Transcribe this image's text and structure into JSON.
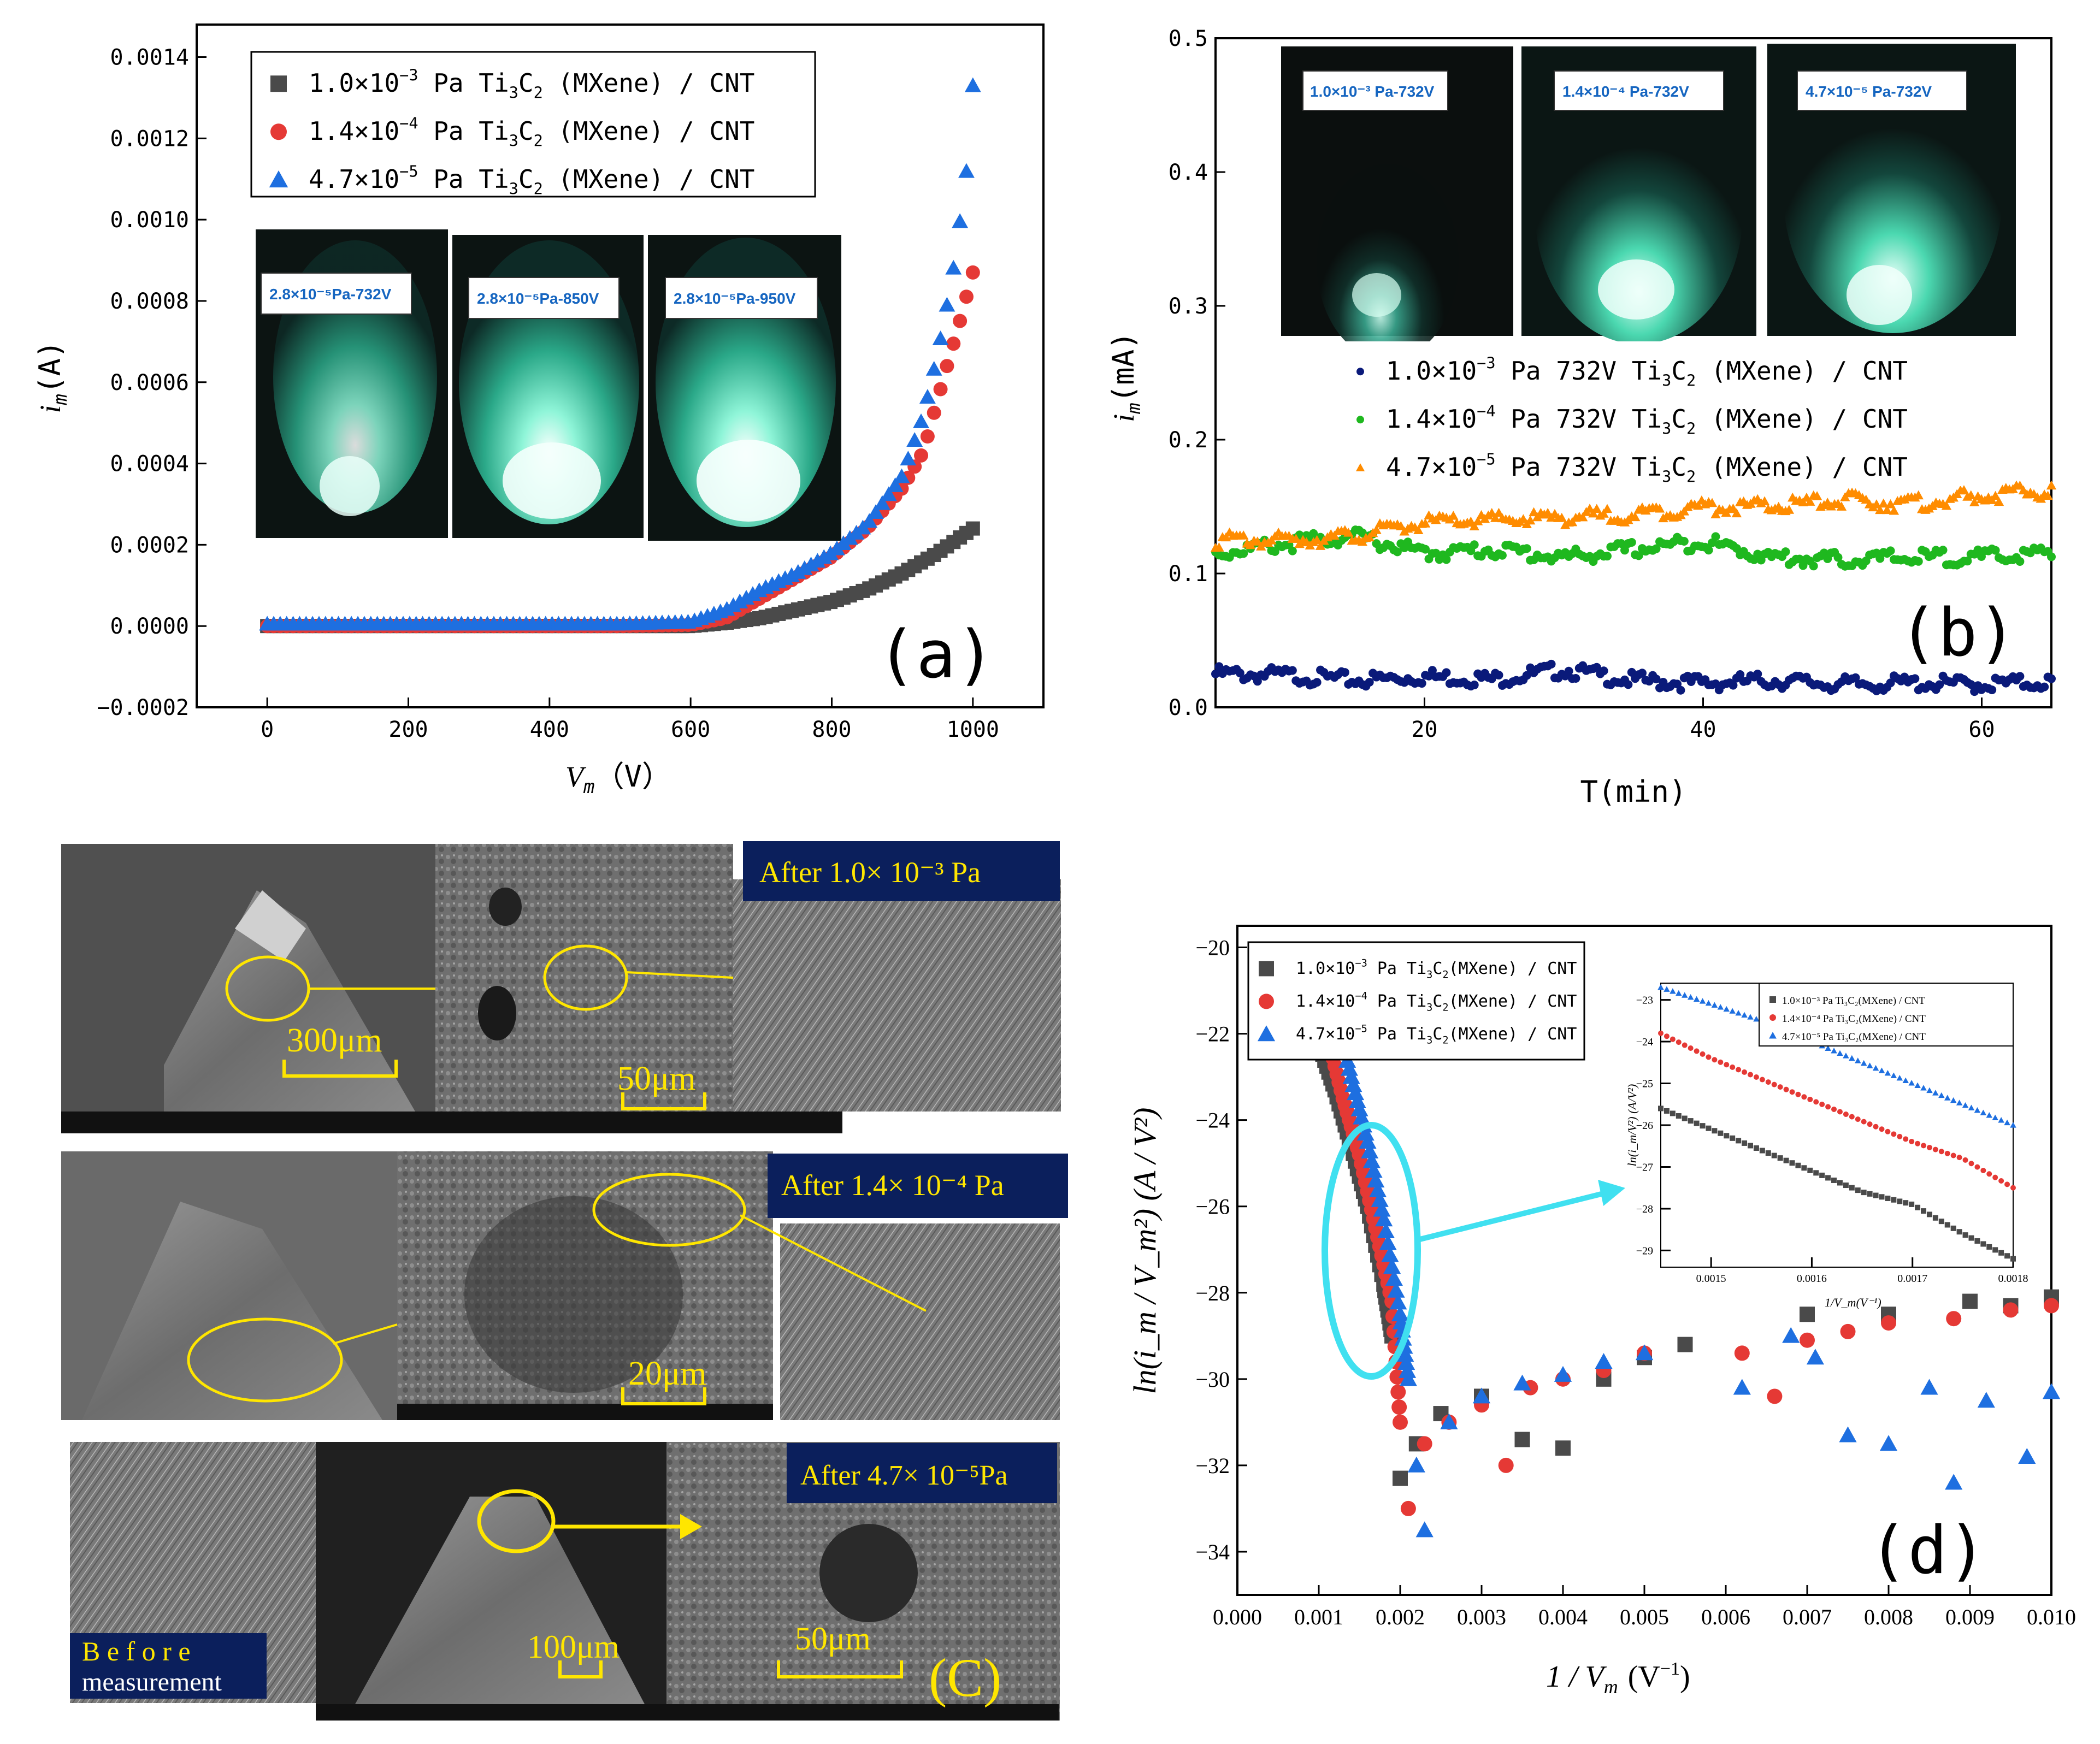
{
  "figure": {
    "colors": {
      "black": "#4a4a4a",
      "red": "#e53935",
      "blue": "#1e6fe0",
      "navy": "#0a1a7a",
      "green": "#1fb81f",
      "orange": "#ff8c00",
      "cyan": "#40e0f0",
      "yellow": "#ffe600",
      "teal": "#3fe0b0",
      "capbg": "#0b1f5c"
    }
  },
  "chart_data": [
    {
      "id": "a",
      "type": "scatter",
      "panel_label": "(a)",
      "xlabel_var": "V",
      "xlabel_sub": "m",
      "xlabel_unit": "（V）",
      "ylabel_var": "i",
      "ylabel_sub": "m",
      "ylabel_unit": "(A)",
      "xlim": [
        -100,
        1100
      ],
      "ylim": [
        -0.0002,
        0.00148
      ],
      "xticks": [
        "0",
        "200",
        "400",
        "600",
        "800",
        "1000"
      ],
      "yticks": [
        "−0.0002",
        "0.0000",
        "0.0002",
        "0.0004",
        "0.0006",
        "0.0008",
        "0.0010",
        "0.0012",
        "0.0014"
      ],
      "legend": [
        {
          "a": "1.0×10",
          "exp": "−3",
          "b": " Pa Ti",
          "s1": "3",
          "c": "C",
          "s2": "2",
          "d": " (MXene) / CNT",
          "marker": "square",
          "color": "#4a4a4a"
        },
        {
          "a": "1.4×10",
          "exp": "−4",
          "b": " Pa Ti",
          "s1": "3",
          "c": "C",
          "s2": "2",
          "d": " (MXene) / CNT",
          "marker": "circle",
          "color": "#e53935"
        },
        {
          "a": "4.7×10",
          "exp": "−5",
          "b": " Pa Ti",
          "s1": "3",
          "c": "C",
          "s2": "2",
          "d": " (MXene) / CNT",
          "marker": "triangle",
          "color": "#1e6fe0"
        }
      ],
      "series": [
        {
          "name": "1.0×10^-3 Pa",
          "x": [
            0,
            100,
            200,
            300,
            400,
            500,
            600,
            650,
            700,
            750,
            800,
            850,
            900,
            950,
            1000
          ],
          "y": [
            0,
            0,
            0,
            0,
            0,
            0,
            0,
            8e-06,
            2e-05,
            4e-05,
            6e-05,
            9e-05,
            0.00013,
            0.00018,
            0.00024
          ]
        },
        {
          "name": "1.4×10^-4 Pa",
          "x": [
            0,
            100,
            200,
            300,
            400,
            500,
            600,
            650,
            700,
            750,
            800,
            850,
            900,
            930,
            960,
            980,
            1000
          ],
          "y": [
            0,
            0,
            0,
            0,
            0,
            0,
            3e-06,
            2e-05,
            7e-05,
            0.00012,
            0.00017,
            0.00024,
            0.00034,
            0.00043,
            0.00062,
            0.00074,
            0.00087
          ]
        },
        {
          "name": "4.7×10^-5 Pa",
          "x": [
            0,
            100,
            200,
            300,
            400,
            500,
            600,
            650,
            700,
            750,
            800,
            850,
            900,
            930,
            950,
            970,
            990,
            1000
          ],
          "y": [
            5e-06,
            5e-06,
            5e-06,
            5e-06,
            5e-06,
            5e-06,
            1e-05,
            4e-05,
            9e-05,
            0.00013,
            0.00018,
            0.00025,
            0.00037,
            0.00052,
            0.00067,
            0.00085,
            0.0011,
            0.00133
          ]
        }
      ],
      "insets": [
        "2.8×10⁻⁵Pa-732V",
        "2.8×10⁻⁵Pa-850V",
        "2.8×10⁻⁵Pa-950V"
      ]
    },
    {
      "id": "b",
      "type": "scatter",
      "panel_label": "(b)",
      "xlabel": "T(min)",
      "ylabel_var": "i",
      "ylabel_sub": "m",
      "ylabel_unit": "(mA)",
      "xlim": [
        5,
        65
      ],
      "ylim": [
        0,
        0.5
      ],
      "xticks": [
        "20",
        "40",
        "60"
      ],
      "yticks": [
        "0.0",
        "0.1",
        "0.2",
        "0.3",
        "0.4",
        "0.5"
      ],
      "legend": [
        {
          "a": "1.0×10",
          "exp": "−3",
          "b": " Pa 732V Ti",
          "s1": "3",
          "c": "C",
          "s2": "2",
          "d": " (MXene) / CNT",
          "marker": "dot",
          "color": "#0a1a7a"
        },
        {
          "a": "1.4×10",
          "exp": "−4",
          "b": " Pa 732V Ti",
          "s1": "3",
          "c": "C",
          "s2": "2",
          "d": " (MXene) / CNT",
          "marker": "dot",
          "color": "#1fb81f"
        },
        {
          "a": "4.7×10",
          "exp": "−5",
          "b": " Pa 732V Ti",
          "s1": "3",
          "c": "C",
          "s2": "2",
          "d": " (MXene) / CNT",
          "marker": "tri",
          "color": "#ff8c00"
        }
      ],
      "series": [
        {
          "name": "1.0×10^-3 Pa 732V",
          "x": [
            5,
            10,
            15,
            20,
            25,
            30,
            35,
            40,
            45,
            50,
            55,
            60,
            65
          ],
          "y": [
            0.025,
            0.024,
            0.02,
            0.023,
            0.021,
            0.028,
            0.02,
            0.018,
            0.02,
            0.017,
            0.018,
            0.017,
            0.019
          ]
        },
        {
          "name": "1.4×10^-4 Pa 732V",
          "x": [
            5,
            10,
            15,
            20,
            25,
            30,
            35,
            40,
            45,
            50,
            55,
            60,
            65
          ],
          "y": [
            0.115,
            0.122,
            0.128,
            0.115,
            0.118,
            0.112,
            0.118,
            0.124,
            0.112,
            0.11,
            0.112,
            0.112,
            0.115
          ]
        },
        {
          "name": "4.7×10^-5 Pa 732V",
          "x": [
            5,
            10,
            15,
            20,
            25,
            30,
            35,
            40,
            45,
            50,
            55,
            60,
            65
          ],
          "y": [
            0.125,
            0.125,
            0.128,
            0.138,
            0.14,
            0.142,
            0.144,
            0.15,
            0.15,
            0.155,
            0.152,
            0.158,
            0.162
          ]
        }
      ],
      "insets": [
        "1.0×10⁻³ Pa-732V",
        "1.4×10⁻⁴ Pa-732V",
        "4.7×10⁻⁵ Pa-732V"
      ]
    },
    {
      "id": "d",
      "type": "scatter",
      "panel_label": "(d)",
      "xlabel_pre": "1 / V",
      "xlabel_sub": "m",
      "xlabel_unit": "(V",
      "xlabel_exp": "−1",
      "xlabel_close": ")",
      "ylabel": "ln(i_m / V_m²) (A / V²)",
      "xlim": [
        0,
        0.01
      ],
      "ylim": [
        -35,
        -19.5
      ],
      "xticks": [
        "0.000",
        "0.001",
        "0.002",
        "0.003",
        "0.004",
        "0.005",
        "0.006",
        "0.007",
        "0.008",
        "0.009",
        "0.010"
      ],
      "yticks": [
        "−20",
        "−22",
        "−24",
        "−26",
        "−28",
        "−30",
        "−32",
        "−34"
      ],
      "legend": [
        {
          "a": "1.0×10",
          "exp": "−3",
          "b": " Pa Ti",
          "s1": "3",
          "c": "C",
          "s2": "2",
          "d": "(MXene) / CNT",
          "marker": "square",
          "color": "#4a4a4a"
        },
        {
          "a": "1.4×10",
          "exp": "−4",
          "b": " Pa Ti",
          "s1": "3",
          "c": "C",
          "s2": "2",
          "d": "(MXene) / CNT",
          "marker": "circle",
          "color": "#e53935"
        },
        {
          "a": "4.7×10",
          "exp": "−5",
          "b": " Pa Ti",
          "s1": "3",
          "c": "C",
          "s2": "2",
          "d": "(MXene) / CNT",
          "marker": "triangle",
          "color": "#1e6fe0"
        }
      ],
      "series": [
        {
          "name": "1.0×10^-3 Pa",
          "x": [
            0.001,
            0.0012,
            0.0014,
            0.0016,
            0.0018,
            0.0019,
            0.002,
            0.0022,
            0.0025,
            0.003,
            0.0035,
            0.004,
            0.0045,
            0.005,
            0.0055,
            0.007,
            0.008,
            0.009,
            0.0095,
            0.01
          ],
          "y": [
            -22.2,
            -23.3,
            -24.6,
            -26,
            -27.8,
            -29,
            -32.3,
            -31.5,
            -30.8,
            -30.4,
            -31.4,
            -31.6,
            -30.0,
            -29.5,
            -29.2,
            -28.5,
            -28.5,
            -28.2,
            -28.3,
            -28.1
          ]
        },
        {
          "name": "1.4×10^-4 Pa",
          "x": [
            0.0011,
            0.0013,
            0.0015,
            0.0017,
            0.0019,
            0.002,
            0.0021,
            0.0023,
            0.0026,
            0.003,
            0.0033,
            0.0036,
            0.004,
            0.0045,
            0.005,
            0.0062,
            0.0066,
            0.007,
            0.0075,
            0.008,
            0.0088,
            0.0095,
            0.01
          ],
          "y": [
            -22.0,
            -23.5,
            -24.8,
            -26.5,
            -28.2,
            -31,
            -33,
            -31.5,
            -31,
            -30.6,
            -32,
            -30.2,
            -30,
            -29.8,
            -29.4,
            -29.4,
            -30.4,
            -29.1,
            -28.9,
            -28.7,
            -28.6,
            -28.4,
            -28.3
          ]
        },
        {
          "name": "4.7×10^-5 Pa",
          "x": [
            0.0012,
            0.0014,
            0.0016,
            0.0018,
            0.002,
            0.0021,
            0.0022,
            0.0023,
            0.0026,
            0.003,
            0.0035,
            0.004,
            0.0045,
            0.005,
            0.0062,
            0.0068,
            0.0071,
            0.0075,
            0.008,
            0.0085,
            0.0088,
            0.0092,
            0.0097,
            0.01
          ],
          "y": [
            -21.5,
            -23.0,
            -24.5,
            -26.3,
            -28.5,
            -30,
            -32,
            -33.5,
            -31,
            -30.4,
            -30.1,
            -29.9,
            -29.6,
            -29.4,
            -30.2,
            -29,
            -29.5,
            -31.3,
            -31.5,
            -30.2,
            -32.4,
            -30.5,
            -31.8,
            -30.3
          ]
        }
      ],
      "inset": {
        "xlim": [
          0.00145,
          0.0018
        ],
        "ylim": [
          -29.4,
          -22.6
        ],
        "xticks": [
          "0.0015",
          "0.0016",
          "0.0017",
          "0.0018"
        ],
        "yticks": [
          "−23",
          "−24",
          "−25",
          "−26",
          "−27",
          "−28",
          "−29"
        ],
        "xlabel": "1/V_m(V⁻¹)",
        "ylabel": "ln(i_m/V²) (A/V²)",
        "legend": [
          "1.0×10⁻³ Pa Ti₃C₂(MXene) / CNT",
          "1.4×10⁻⁴ Pa Ti₃C₂(MXene) / CNT",
          "4.7×10⁻⁵ Pa Ti₃C₂(MXene) / CNT"
        ],
        "series": [
          {
            "x": [
              0.00145,
              0.0015,
              0.00155,
              0.0016,
              0.00165,
              0.0017,
              0.00175,
              0.0018
            ],
            "y": [
              -25.6,
              -26.1,
              -26.6,
              -27.1,
              -27.6,
              -27.9,
              -28.6,
              -29.2
            ]
          },
          {
            "x": [
              0.00145,
              0.0015,
              0.00155,
              0.0016,
              0.00165,
              0.0017,
              0.00175,
              0.0018
            ],
            "y": [
              -23.8,
              -24.4,
              -24.9,
              -25.4,
              -25.9,
              -26.4,
              -26.8,
              -27.5
            ]
          },
          {
            "x": [
              0.00145,
              0.0015,
              0.00155,
              0.0016,
              0.00165,
              0.0017,
              0.00175,
              0.0018
            ],
            "y": [
              -22.7,
              -23.1,
              -23.5,
              -24.0,
              -24.5,
              -25.0,
              -25.5,
              -26.0
            ]
          }
        ]
      }
    }
  ],
  "panel_c": {
    "label": "(C)",
    "row1": {
      "caption": "After 1.0× 10⁻³ Pa",
      "scale_a": "300μm",
      "scale_b": "50μm"
    },
    "row2": {
      "caption": "After 1.4× 10⁻⁴ Pa",
      "scale_a": "20μm"
    },
    "row3": {
      "caption": "After 4.7× 10⁻⁵Pa",
      "scale_a": "100μm",
      "scale_b": "50μm",
      "before_1": "B e f o r e",
      "before_2": "measurement"
    }
  }
}
